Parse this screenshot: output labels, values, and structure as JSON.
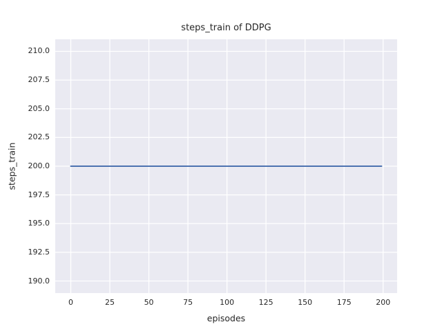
{
  "chart_data": {
    "type": "line",
    "title": "steps_train of DDPG",
    "xlabel": "episodes",
    "ylabel": "steps_train",
    "series": [
      {
        "name": "steps_train",
        "color": "#4c72b0",
        "x": [
          0,
          199
        ],
        "y": [
          200,
          200
        ],
        "note": "constant value 200 for every episode from 0 to 199"
      }
    ],
    "x_ticks": [
      0,
      25,
      50,
      75,
      100,
      125,
      150,
      175,
      200
    ],
    "y_ticks": [
      190.0,
      192.5,
      195.0,
      197.5,
      200.0,
      202.5,
      205.0,
      207.5,
      210.0
    ],
    "y_tick_labels": [
      "190.0",
      "192.5",
      "195.0",
      "197.5",
      "200.0",
      "202.5",
      "205.0",
      "207.5",
      "210.0"
    ],
    "xlim": [
      -9.95,
      208.95
    ],
    "ylim": [
      188.95,
      211.05
    ],
    "grid": true,
    "legend": false,
    "style": {
      "plot_bg": "#eaeaf2",
      "grid_color": "#ffffff",
      "text_color": "#262626",
      "figure_bg": "#ffffff"
    }
  }
}
